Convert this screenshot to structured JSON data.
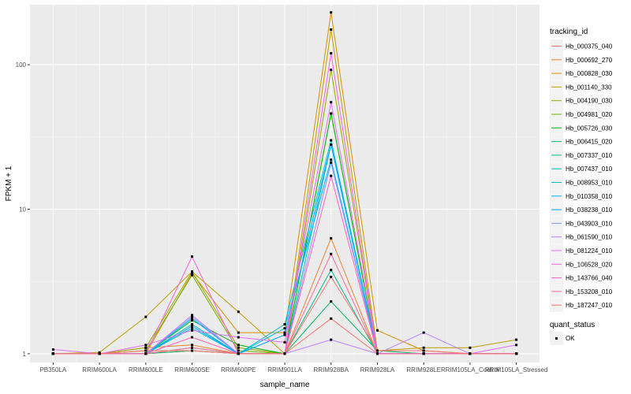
{
  "chart_data": {
    "type": "line",
    "xlabel": "sample_name",
    "ylabel": "FPKM + 1",
    "y_scale": "log10",
    "ylim": [
      0.87,
      260
    ],
    "yticks": [
      1,
      10,
      100
    ],
    "ytick_labels": [
      "1",
      "10",
      "100"
    ],
    "grid": true,
    "categories": [
      "PB350LA",
      "RRIM600LA",
      "RRIM600LE",
      "RRIM600SE",
      "RRIM600PE",
      "RRIM901LA",
      "RRIM928BA",
      "RRIM928LA",
      "RRIM928LE",
      "RRIM105LA_Control",
      "RRIM105LA_Stressed"
    ],
    "legend": {
      "title": "tracking_id",
      "placement": "right",
      "shape_title": "quant_status",
      "shape_label": "OK"
    },
    "series": [
      {
        "name": "Hb_000375_040",
        "color": "#F8766D",
        "values": [
          1.0,
          1.0,
          1.0,
          1.05,
          1.0,
          1.0,
          1.75,
          1.0,
          1.0,
          1.0,
          1.0
        ]
      },
      {
        "name": "Hb_000692_270",
        "color": "#E9842C",
        "values": [
          1.0,
          1.0,
          1.1,
          1.15,
          1.0,
          1.0,
          6.3,
          1.0,
          1.0,
          1.0,
          1.0
        ]
      },
      {
        "name": "Hb_000828_030",
        "color": "#D69100",
        "values": [
          1.0,
          1.0,
          1.0,
          3.6,
          1.4,
          1.4,
          230,
          1.45,
          1.05,
          1.0,
          1.0
        ]
      },
      {
        "name": "Hb_001140_330",
        "color": "#BC9D00",
        "values": [
          1.0,
          1.02,
          1.8,
          3.7,
          1.95,
          1.0,
          175,
          1.05,
          1.1,
          1.1,
          1.25
        ]
      },
      {
        "name": "Hb_004190_030",
        "color": "#9CA700",
        "values": [
          1.0,
          1.0,
          1.1,
          3.7,
          1.1,
          1.0,
          92,
          1.0,
          1.0,
          1.0,
          1.0
        ]
      },
      {
        "name": "Hb_004981_020",
        "color": "#6FB000",
        "values": [
          1.0,
          1.0,
          1.05,
          3.5,
          1.05,
          1.0,
          46,
          1.0,
          1.0,
          1.0,
          1.0
        ]
      },
      {
        "name": "Hb_005726_030",
        "color": "#00B813",
        "values": [
          1.0,
          1.0,
          1.0,
          1.7,
          1.15,
          1.0,
          46,
          1.0,
          1.0,
          1.0,
          1.0
        ]
      },
      {
        "name": "Hb_006415_020",
        "color": "#00BD61",
        "values": [
          1.0,
          1.0,
          1.0,
          1.05,
          1.0,
          1.0,
          2.3,
          1.05,
          1.0,
          1.0,
          1.0
        ]
      },
      {
        "name": "Hb_007337_010",
        "color": "#00C08E",
        "values": [
          1.0,
          1.0,
          1.0,
          1.1,
          1.0,
          1.0,
          3.8,
          1.0,
          1.0,
          1.0,
          1.0
        ]
      },
      {
        "name": "Hb_007437_010",
        "color": "#00C0B4",
        "values": [
          1.0,
          1.0,
          1.0,
          1.6,
          1.0,
          1.0,
          28,
          1.0,
          1.0,
          1.0,
          1.0
        ]
      },
      {
        "name": "Hb_008953_010",
        "color": "#00BDD4",
        "values": [
          1.0,
          1.0,
          1.0,
          1.5,
          1.0,
          1.6,
          30,
          1.0,
          1.0,
          1.0,
          1.0
        ]
      },
      {
        "name": "Hb_010358_010",
        "color": "#00B5EE",
        "values": [
          1.0,
          1.0,
          1.0,
          1.75,
          1.0,
          1.5,
          22,
          1.0,
          1.0,
          1.0,
          1.0
        ]
      },
      {
        "name": "Hb_038238_010",
        "color": "#00A7FF",
        "values": [
          1.0,
          1.0,
          1.0,
          1.55,
          1.0,
          1.35,
          28,
          1.0,
          1.0,
          1.0,
          1.0
        ]
      },
      {
        "name": "Hb_043903_010",
        "color": "#7F96FF",
        "values": [
          1.0,
          1.0,
          1.0,
          1.8,
          1.0,
          1.0,
          21,
          1.0,
          1.0,
          1.0,
          1.0
        ]
      },
      {
        "name": "Hb_061590_010",
        "color": "#BC81FF",
        "values": [
          1.0,
          1.0,
          1.0,
          1.85,
          1.0,
          1.0,
          1.25,
          1.0,
          1.4,
          1.0,
          1.0
        ]
      },
      {
        "name": "Hb_081224_010",
        "color": "#E26EF7",
        "values": [
          1.07,
          1.0,
          1.15,
          1.45,
          1.3,
          1.2,
          55,
          1.0,
          1.0,
          1.0,
          1.15
        ]
      },
      {
        "name": "Hb_106528_020",
        "color": "#F863DF",
        "values": [
          1.0,
          1.0,
          1.0,
          4.7,
          1.0,
          1.0,
          120,
          1.0,
          1.0,
          1.0,
          1.0
        ]
      },
      {
        "name": "Hb_143766_040",
        "color": "#FF62BF",
        "values": [
          1.0,
          1.0,
          1.0,
          1.3,
          1.0,
          1.0,
          17,
          1.0,
          1.0,
          1.0,
          1.0
        ]
      },
      {
        "name": "Hb_153208_010",
        "color": "#FF6A98",
        "values": [
          1.0,
          1.0,
          1.0,
          1.1,
          1.0,
          1.0,
          4.9,
          1.0,
          1.0,
          1.0,
          1.0
        ]
      },
      {
        "name": "Hb_187247_010",
        "color": "#F8766D",
        "values": [
          1.0,
          1.0,
          1.05,
          1.05,
          1.0,
          1.0,
          3.4,
          1.05,
          1.05,
          1.0,
          1.0
        ]
      }
    ]
  }
}
